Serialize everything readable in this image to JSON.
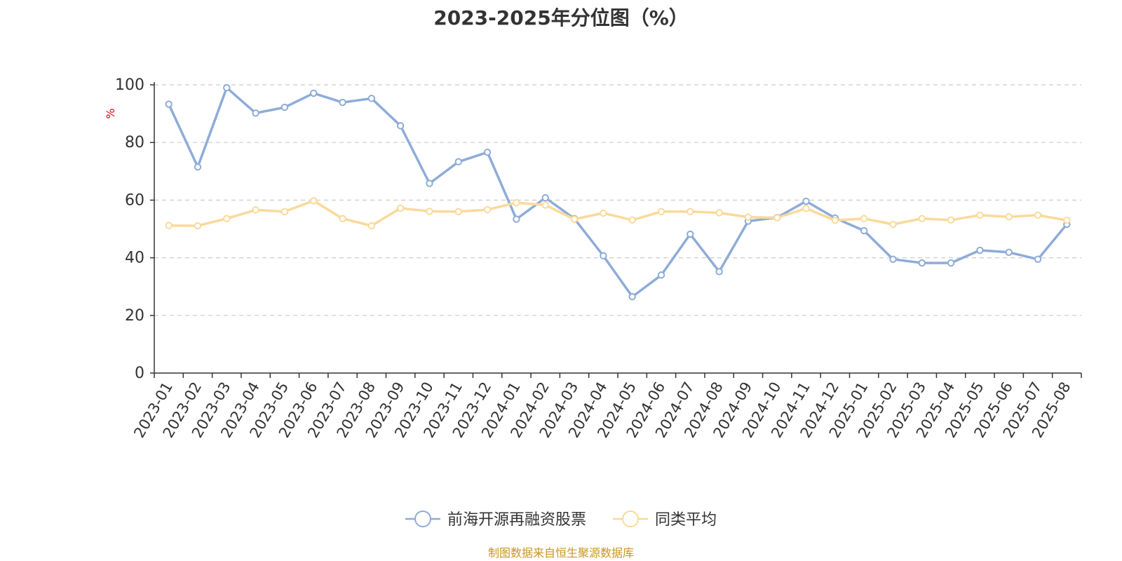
{
  "chart_data": {
    "type": "line",
    "title": "2023-2025年分位图（%）",
    "ylabel": "%",
    "ylim": [
      0,
      100
    ],
    "yticks": [
      0,
      20,
      40,
      60,
      80,
      100
    ],
    "grid": true,
    "legend_position": "bottom-center",
    "x": [
      "2023-01",
      "2023-02",
      "2023-03",
      "2023-04",
      "2023-05",
      "2023-06",
      "2023-07",
      "2023-08",
      "2023-09",
      "2023-10",
      "2023-11",
      "2023-12",
      "2024-01",
      "2024-02",
      "2024-03",
      "2024-04",
      "2024-05",
      "2024-06",
      "2024-07",
      "2024-08",
      "2024-09",
      "2024-10",
      "2024-11",
      "2024-12",
      "2025-01",
      "2025-02",
      "2025-03",
      "2025-04",
      "2025-05",
      "2025-06",
      "2025-07",
      "2025-08"
    ],
    "series": [
      {
        "name": "前海开源再融资股票",
        "color": "#8eacd8",
        "values": [
          93.3,
          71.5,
          99.0,
          90.2,
          92.2,
          97.1,
          93.9,
          95.3,
          85.8,
          65.8,
          73.3,
          76.6,
          53.4,
          60.8,
          53.6,
          40.7,
          26.5,
          34.0,
          48.2,
          35.2,
          52.7,
          54.0,
          59.6,
          53.8,
          49.4,
          39.5,
          38.2,
          38.2,
          42.6,
          41.9,
          39.5,
          51.6
        ]
      },
      {
        "name": "同类平均",
        "color": "#fbd99a",
        "values": [
          51.2,
          51.1,
          53.6,
          56.6,
          56.0,
          59.8,
          53.6,
          51.1,
          57.2,
          56.1,
          56.0,
          56.7,
          59.1,
          58.3,
          53.4,
          55.5,
          53.1,
          56.0,
          56.0,
          55.6,
          54.1,
          53.9,
          57.1,
          53.0,
          53.6,
          51.6,
          53.6,
          53.1,
          54.8,
          54.2,
          54.8,
          53.0
        ]
      }
    ]
  },
  "footer": {
    "source_note": "制图数据来自恒生聚源数据库"
  },
  "colors": {
    "axis": "#333333",
    "grid": "#cccccc",
    "ylabel": "#e60012",
    "source_note": "#c8961e"
  }
}
